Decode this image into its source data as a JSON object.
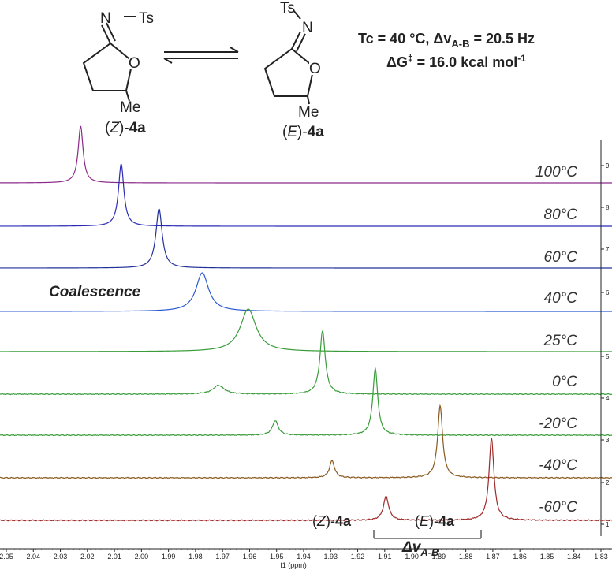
{
  "header": {
    "z_isomer": {
      "n": "N",
      "ts": "Ts",
      "o": "O",
      "me": "Me",
      "label_prefix": "(",
      "label_italic": "Z",
      "label_suffix": ")-",
      "label_bold": "4a"
    },
    "e_isomer": {
      "n": "N",
      "ts": "Ts",
      "o": "O",
      "me": "Me",
      "label_prefix": "(",
      "label_italic": "E",
      "label_suffix": ")-",
      "label_bold": "4a"
    },
    "params_line1_a": "Tc = 40 °C, Δv",
    "params_line1_sub": "A-B",
    "params_line1_b": " = 20.5 Hz",
    "params_line2_a": "ΔG",
    "params_line2_sup1": "‡",
    "params_line2_b": " = 16.0 kcal mol",
    "params_line2_sup2": "-1"
  },
  "annotations": {
    "coalescence": "Coalescence",
    "z_peak_prefix": "(",
    "z_peak_italic": "Z",
    "z_peak_suffix": ")-",
    "z_peak_bold": "4a",
    "e_peak_prefix": "(",
    "e_peak_italic": "E",
    "e_peak_suffix": ")-",
    "e_peak_bold": "4a",
    "delta_main": "Δv",
    "delta_sub": "A-B"
  },
  "colors": {
    "100C": "#8a2a8a",
    "80C": "#2a2ab4",
    "60C": "#22309a",
    "40C": "#2a5ad2",
    "25C": "#3a9c3a",
    "0C": "#3a9c3a",
    "m20C": "#3a9c3a",
    "m40C": "#8a5a20",
    "m60C": "#a02a2a"
  },
  "chart_data": {
    "type": "line",
    "subtype": "stacked variable-temperature 1H NMR spectra",
    "xlabel": "f1 (ppm)",
    "xlim": [
      2.05,
      1.83
    ],
    "x_reversed": true,
    "x_ticks": [
      "2.05",
      "2.04",
      "2.03",
      "2.02",
      "2.01",
      "2.00",
      "1.99",
      "1.98",
      "1.97",
      "1.96",
      "1.95",
      "1.94",
      "1.93",
      "1.92",
      "1.91",
      "1.90",
      "1.89",
      "1.88",
      "1.87",
      "1.86",
      "1.85",
      "1.84",
      "1.83"
    ],
    "right_axis_ticks": [
      "1",
      "2",
      "3",
      "4",
      "5",
      "6",
      "7",
      "8",
      "9"
    ],
    "series": [
      {
        "name": "100°C",
        "peaks": [
          {
            "x": 2.0225,
            "h": 1.0,
            "w": 0.0011
          }
        ]
      },
      {
        "name": "80°C",
        "peaks": [
          {
            "x": 2.0075,
            "h": 1.0,
            "w": 0.0012
          }
        ]
      },
      {
        "name": "60°C",
        "peaks": [
          {
            "x": 1.9935,
            "h": 1.0,
            "w": 0.0014
          }
        ]
      },
      {
        "name": "40°C",
        "peaks": [
          {
            "x": 1.9775,
            "h": 1.0,
            "w": 0.0028
          }
        ]
      },
      {
        "name": "25°C",
        "peaks": [
          {
            "x": 1.9605,
            "h": 1.0,
            "w": 0.0035
          }
        ]
      },
      {
        "name": "0°C",
        "peaks": [
          {
            "x": 1.933,
            "h": 1.0,
            "w": 0.0012
          },
          {
            "x": 1.9715,
            "h": 0.14,
            "w": 0.0025
          }
        ]
      },
      {
        "name": "-20°C",
        "peaks": [
          {
            "x": 1.9135,
            "h": 1.0,
            "w": 0.0011
          },
          {
            "x": 1.9505,
            "h": 0.22,
            "w": 0.0013
          }
        ]
      },
      {
        "name": "-40°C",
        "peaks": [
          {
            "x": 1.8895,
            "h": 1.0,
            "w": 0.0011
          },
          {
            "x": 1.9295,
            "h": 0.24,
            "w": 0.0011
          }
        ]
      },
      {
        "name": "-60°C",
        "peaks": [
          {
            "x": 1.8705,
            "h": 1.0,
            "w": 0.0011
          },
          {
            "x": 1.9095,
            "h": 0.29,
            "w": 0.0012
          }
        ]
      }
    ]
  }
}
